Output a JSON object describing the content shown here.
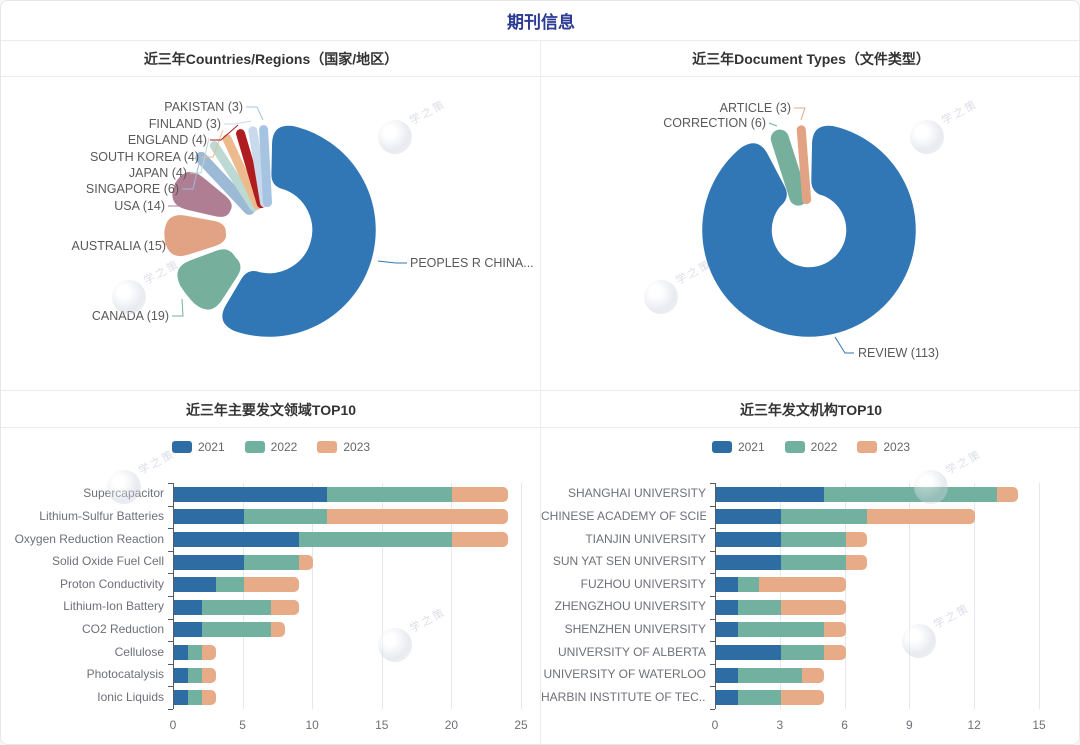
{
  "header": {
    "title": "期刊信息"
  },
  "watermark_text": "学之策",
  "colors": {
    "title_accent": "#2b3a92",
    "year_2021": "#2e6da4",
    "year_2022": "#72b1a0",
    "year_2023": "#e8ab88",
    "axis_text": "#6e7079",
    "grid_line": "#e4e7ee"
  },
  "legend": {
    "years": [
      "2021",
      "2022",
      "2023"
    ]
  },
  "chart_data": [
    {
      "id": "countries",
      "type": "pie",
      "variant": "rose-donut",
      "title": "近三年Countries/Regions（国家/地区）",
      "legend_position": "none",
      "slices": [
        {
          "label": "PEOPLES R CHINA...",
          "value": 103,
          "value_estimated": true,
          "color": "#3176b5"
        },
        {
          "label": "CANADA (19)",
          "value": 19,
          "color": "#76b09c"
        },
        {
          "label": "AUSTRALIA (15)",
          "value": 15,
          "color": "#e2a384"
        },
        {
          "label": "USA (14)",
          "value": 14,
          "color": "#b07e93"
        },
        {
          "label": "SINGAPORE (6)",
          "value": 6,
          "color": "#9cb9d6"
        },
        {
          "label": "JAPAN (4)",
          "value": 4,
          "color": "#bcd9d2"
        },
        {
          "label": "SOUTH KOREA (4)",
          "value": 4,
          "color": "#edba8e"
        },
        {
          "label": "ENGLAND (4)",
          "value": 4,
          "color": "#b01d21"
        },
        {
          "label": "FINLAND (3)",
          "value": 3,
          "color": "#c9daec"
        },
        {
          "label": "PAKISTAN (3)",
          "value": 3,
          "color": "#a6c4e1"
        }
      ]
    },
    {
      "id": "doctypes",
      "type": "pie",
      "variant": "rose-donut",
      "title": "近三年Document Types（文件类型）",
      "legend_position": "none",
      "slices": [
        {
          "label": "REVIEW (113)",
          "value": 113,
          "color": "#3176b5"
        },
        {
          "label": "CORRECTION (6)",
          "value": 6,
          "color": "#76b09c"
        },
        {
          "label": "ARTICLE (3)",
          "value": 3,
          "color": "#e2a384"
        }
      ]
    },
    {
      "id": "fields",
      "type": "bar",
      "variant": "horizontal-stacked",
      "title": "近三年主要发文领域TOP10",
      "legend_position": "top",
      "grid": "vertical",
      "xlabel": "",
      "ylabel": "",
      "xlim": [
        0,
        25
      ],
      "xticks": [
        0,
        5,
        10,
        15,
        20,
        25
      ],
      "categories": [
        "Supercapacitor",
        "Lithium-Sulfur Batteries",
        "Oxygen Reduction Reaction",
        "Solid Oxide Fuel Cell",
        "Proton Conductivity",
        "Lithium-Ion Battery",
        "CO2 Reduction",
        "Cellulose",
        "Photocatalysis",
        "Ionic Liquids"
      ],
      "series": [
        {
          "name": "2021",
          "color": "#2e6da4",
          "values": [
            11,
            5,
            9,
            5,
            3,
            2,
            2,
            1,
            1,
            1
          ]
        },
        {
          "name": "2022",
          "color": "#72b1a0",
          "values": [
            9,
            6,
            11,
            4,
            2,
            5,
            5,
            1,
            1,
            1
          ]
        },
        {
          "name": "2023",
          "color": "#e8ab88",
          "values": [
            4,
            13,
            4,
            1,
            4,
            2,
            1,
            1,
            1,
            1
          ]
        }
      ]
    },
    {
      "id": "orgs",
      "type": "bar",
      "variant": "horizontal-stacked",
      "title": "近三年发文机构TOP10",
      "legend_position": "top",
      "grid": "vertical",
      "xlabel": "",
      "ylabel": "",
      "xlim": [
        0,
        15
      ],
      "xticks": [
        0,
        3,
        6,
        9,
        12,
        15
      ],
      "categories": [
        "SHANGHAI UNIVERSITY",
        "CHINESE ACADEMY OF SCIE...",
        "TIANJIN UNIVERSITY",
        "SUN YAT SEN UNIVERSITY",
        "FUZHOU UNIVERSITY",
        "ZHENGZHOU UNIVERSITY",
        "SHENZHEN UNIVERSITY",
        "UNIVERSITY OF ALBERTA",
        "UNIVERSITY OF WATERLOO",
        "HARBIN INSTITUTE OF TEC..."
      ],
      "series": [
        {
          "name": "2021",
          "color": "#2e6da4",
          "values": [
            5,
            3,
            3,
            3,
            1,
            1,
            1,
            3,
            1,
            1
          ]
        },
        {
          "name": "2022",
          "color": "#72b1a0",
          "values": [
            8,
            4,
            3,
            3,
            1,
            2,
            4,
            2,
            3,
            2
          ]
        },
        {
          "name": "2023",
          "color": "#e8ab88",
          "values": [
            1,
            5,
            1,
            1,
            4,
            3,
            1,
            1,
            1,
            2
          ]
        }
      ]
    }
  ]
}
